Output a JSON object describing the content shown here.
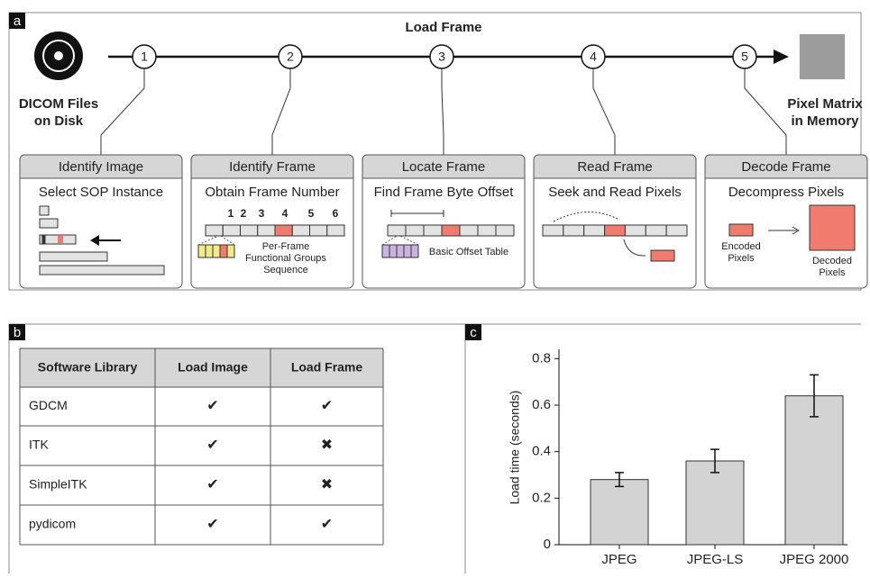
{
  "panel_labels": [
    "a",
    "b",
    "c"
  ],
  "pipeline": {
    "title": "Load Frame",
    "source": [
      "DICOM Files",
      "on Disk"
    ],
    "target": [
      "Pixel Matrix",
      "in Memory"
    ],
    "steps": [
      {
        "number": 1,
        "header": "Identify Image",
        "task": "Select SOP Instance"
      },
      {
        "number": 2,
        "header": "Identify Frame",
        "task": "Obtain Frame Number"
      },
      {
        "number": 3,
        "header": "Locate Frame",
        "task": "Find Frame Byte Offset"
      },
      {
        "number": 4,
        "header": "Read Frame",
        "task": "Seek and Read Pixels"
      },
      {
        "number": 5,
        "header": "Decode Frame",
        "task": "Decompress Pixels"
      }
    ]
  },
  "details": {
    "frame_numbers": [
      "1",
      "2",
      "3",
      "4",
      "5",
      "6"
    ],
    "functional_groups": [
      "Per-Frame",
      "Functional Groups",
      "Sequence"
    ],
    "offset_table": "Basic Offset Table",
    "encoded": [
      "Encoded",
      "Pixels"
    ],
    "decoded": [
      "Decoded",
      "Pixels"
    ]
  },
  "table": {
    "header": [
      "Software Library",
      "Load Image",
      "Load Frame"
    ],
    "rows": [
      [
        "GDCM",
        "✔",
        "✔"
      ],
      [
        "ITK",
        "✔",
        "✖"
      ],
      [
        "SimpleITK",
        "✔",
        "✖"
      ],
      [
        "pydicom",
        "✔",
        "✔"
      ]
    ]
  },
  "chart_data": {
    "type": "bar",
    "y_label": "Load time (seconds)",
    "categories": [
      "JPEG",
      "JPEG-LS",
      "JPEG 2000"
    ],
    "values": [
      0.28,
      0.36,
      0.64
    ],
    "errors": [
      0.03,
      0.05,
      0.09
    ],
    "color": "#d3d3d3",
    "ylim": [
      0,
      0.84
    ],
    "yticks": [
      0,
      0.2,
      0.4,
      0.6,
      0.8
    ]
  }
}
